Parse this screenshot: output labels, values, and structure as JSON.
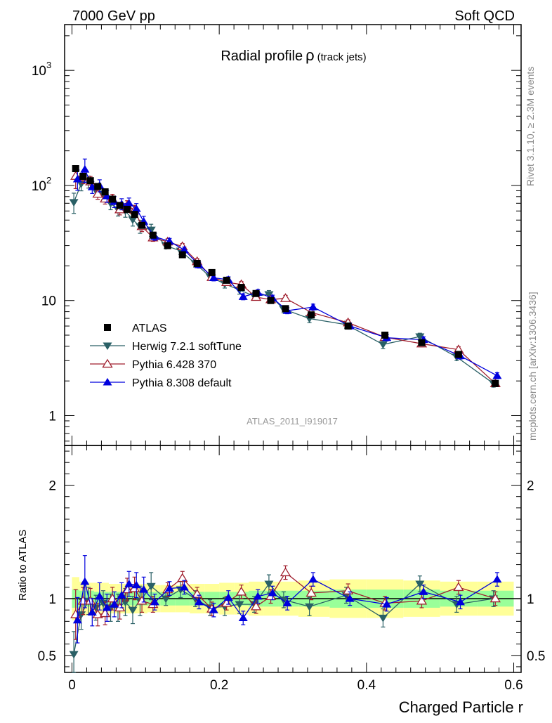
{
  "header": {
    "left": "7000 GeV pp",
    "right": "Soft QCD"
  },
  "side_labels": {
    "rivet": "Rivet 3.1.10, ≥ 2.3M events",
    "mcplots": "mcplots.cern.ch [arXiv:1306.3436]"
  },
  "chart_data": {
    "type": "scatter",
    "title": "Radial profile",
    "title_symbol": "ρ",
    "title_suffix": "(track jets)",
    "analysis_id": "ATLAS_2011_I919017",
    "xlabel": "Charged Particle r",
    "ylabel_ratio": "Ratio to ATLAS",
    "xlim": [
      -0.01,
      0.61
    ],
    "ylim_main": [
      0.55,
      2500
    ],
    "ylim_ratio": [
      0.35,
      2.35
    ],
    "yscale_main": "log",
    "x_ticks": [
      {
        "value": 0,
        "label": "0"
      },
      {
        "value": 0.2,
        "label": "0.2"
      },
      {
        "value": 0.4,
        "label": "0.4"
      },
      {
        "value": 0.6,
        "label": "0.6"
      }
    ],
    "y_ticks_main": [
      {
        "value": 1,
        "label": "1"
      },
      {
        "value": 10,
        "label": "10"
      },
      {
        "value": 100,
        "label": "10",
        "sup": "2"
      },
      {
        "value": 1000,
        "label": "10",
        "sup": "3"
      }
    ],
    "y_ticks_ratio": [
      {
        "value": 0.5,
        "label": "0.5"
      },
      {
        "value": 1,
        "label": "1"
      },
      {
        "value": 2,
        "label": "2"
      }
    ],
    "legend_position": "lower-left",
    "x": [
      0.005,
      0.015,
      0.025,
      0.035,
      0.045,
      0.055,
      0.065,
      0.075,
      0.085,
      0.095,
      0.11,
      0.13,
      0.15,
      0.17,
      0.19,
      0.21,
      0.23,
      0.25,
      0.27,
      0.29,
      0.325,
      0.375,
      0.425,
      0.475,
      0.525,
      0.575
    ],
    "data": {
      "name": "ATLAS",
      "values": [
        140,
        120,
        110,
        98,
        88,
        76,
        67,
        62,
        56,
        45,
        37,
        30,
        25,
        21,
        17.5,
        15,
        13,
        11.5,
        10,
        8.5,
        7.5,
        6,
        5,
        4.3,
        3.4,
        1.9
      ],
      "errors": [
        7,
        5,
        4,
        4,
        3,
        3,
        3,
        2,
        2,
        2,
        1.5,
        1.2,
        1,
        1,
        0.8,
        0.7,
        0.6,
        0.5,
        0.5,
        0.4,
        0.4,
        0.3,
        0.3,
        0.25,
        0.2,
        0.12
      ]
    },
    "band_outer": [
      0.19,
      0.15,
      0.14,
      0.14,
      0.14,
      0.13,
      0.13,
      0.13,
      0.13,
      0.13,
      0.12,
      0.12,
      0.12,
      0.13,
      0.13,
      0.14,
      0.14,
      0.15,
      0.15,
      0.15,
      0.16,
      0.17,
      0.17,
      0.16,
      0.15,
      0.15
    ],
    "band_inner": [
      0.08,
      0.07,
      0.07,
      0.06,
      0.06,
      0.06,
      0.06,
      0.06,
      0.06,
      0.06,
      0.06,
      0.06,
      0.06,
      0.06,
      0.06,
      0.06,
      0.06,
      0.07,
      0.07,
      0.07,
      0.07,
      0.08,
      0.08,
      0.08,
      0.07,
      0.07
    ],
    "series": [
      {
        "name": "Herwig 7.2.1 softTune",
        "color": "#2a6066",
        "marker": "triangle-down-filled",
        "ratio": [
          0.51,
          0.86,
          0.98,
          0.92,
          0.96,
          0.92,
          0.92,
          0.97,
          0.9,
          0.98,
          1.11,
          1.0,
          1.08,
          1.0,
          0.92,
          0.93,
          0.95,
          0.95,
          1.13,
          0.99,
          0.93,
          1.03,
          0.83,
          1.13,
          0.95,
          1.0
        ],
        "ratio_err": [
          0.2,
          0.13,
          0.12,
          0.11,
          0.11,
          0.12,
          0.12,
          0.12,
          0.12,
          0.13,
          0.12,
          0.06,
          0.07,
          0.07,
          0.07,
          0.08,
          0.08,
          0.07,
          0.08,
          0.07,
          0.08,
          0.07,
          0.08,
          0.07,
          0.07,
          0.07
        ]
      },
      {
        "name": "Pythia 6.428 370",
        "color": "#a01f2e",
        "marker": "triangle-up-open",
        "ratio": [
          0.86,
          0.98,
          0.98,
          0.86,
          0.87,
          1.0,
          0.92,
          1.08,
          1.09,
          0.98,
          0.95,
          1.08,
          1.18,
          1.04,
          0.91,
          0.96,
          1.06,
          0.93,
          1.02,
          1.23,
          1.05,
          1.07,
          0.96,
          0.98,
          1.1,
          1.0
        ],
        "ratio_err": [
          0.22,
          0.12,
          0.11,
          0.1,
          0.1,
          0.1,
          0.1,
          0.1,
          0.1,
          0.1,
          0.07,
          0.06,
          0.06,
          0.06,
          0.06,
          0.06,
          0.06,
          0.06,
          0.06,
          0.06,
          0.06,
          0.06,
          0.06,
          0.06,
          0.06,
          0.06
        ]
      },
      {
        "name": "Pythia 8.308 default",
        "color": "#0000dd",
        "marker": "triangle-up-filled",
        "ratio": [
          0.81,
          1.15,
          0.88,
          1.02,
          0.92,
          0.95,
          1.03,
          1.13,
          1.12,
          1.08,
          0.97,
          1.09,
          1.1,
          0.97,
          0.9,
          1.01,
          0.83,
          1.02,
          1.05,
          0.96,
          1.17,
          1.0,
          0.95,
          1.06,
          0.97,
          1.17
        ],
        "ratio_err": [
          0.2,
          0.23,
          0.12,
          0.12,
          0.12,
          0.11,
          0.11,
          0.11,
          0.11,
          0.11,
          0.07,
          0.06,
          0.06,
          0.06,
          0.06,
          0.06,
          0.06,
          0.06,
          0.06,
          0.06,
          0.06,
          0.06,
          0.06,
          0.06,
          0.06,
          0.06
        ]
      }
    ]
  }
}
